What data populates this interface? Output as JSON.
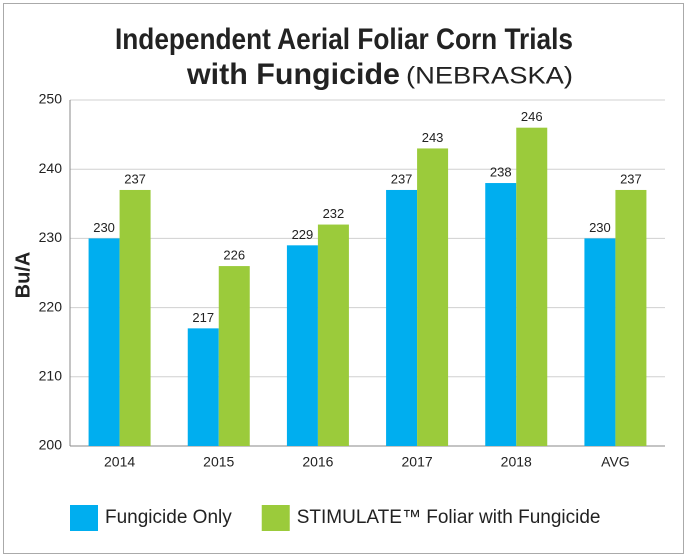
{
  "chart_data": {
    "type": "bar",
    "title": "Independent Aerial Foliar Corn Trials",
    "title_line2": "with Fungicide",
    "title_suffix": "(NEBRASKA)",
    "ylabel": "Bu/A",
    "categories": [
      "2014",
      "2015",
      "2016",
      "2017",
      "2018",
      "AVG"
    ],
    "series": [
      {
        "name": "Fungicide Only",
        "color": "#00aeef",
        "values": [
          230,
          217,
          229,
          237,
          238,
          230
        ]
      },
      {
        "name": "STIMULATE™ Foliar with Fungicide",
        "color": "#9bcb3b",
        "values": [
          237,
          226,
          232,
          243,
          246,
          237
        ]
      }
    ],
    "ylim": [
      200,
      250
    ],
    "yticks": [
      200,
      210,
      220,
      230,
      240,
      250
    ],
    "grid": true,
    "legend": "bottom"
  }
}
